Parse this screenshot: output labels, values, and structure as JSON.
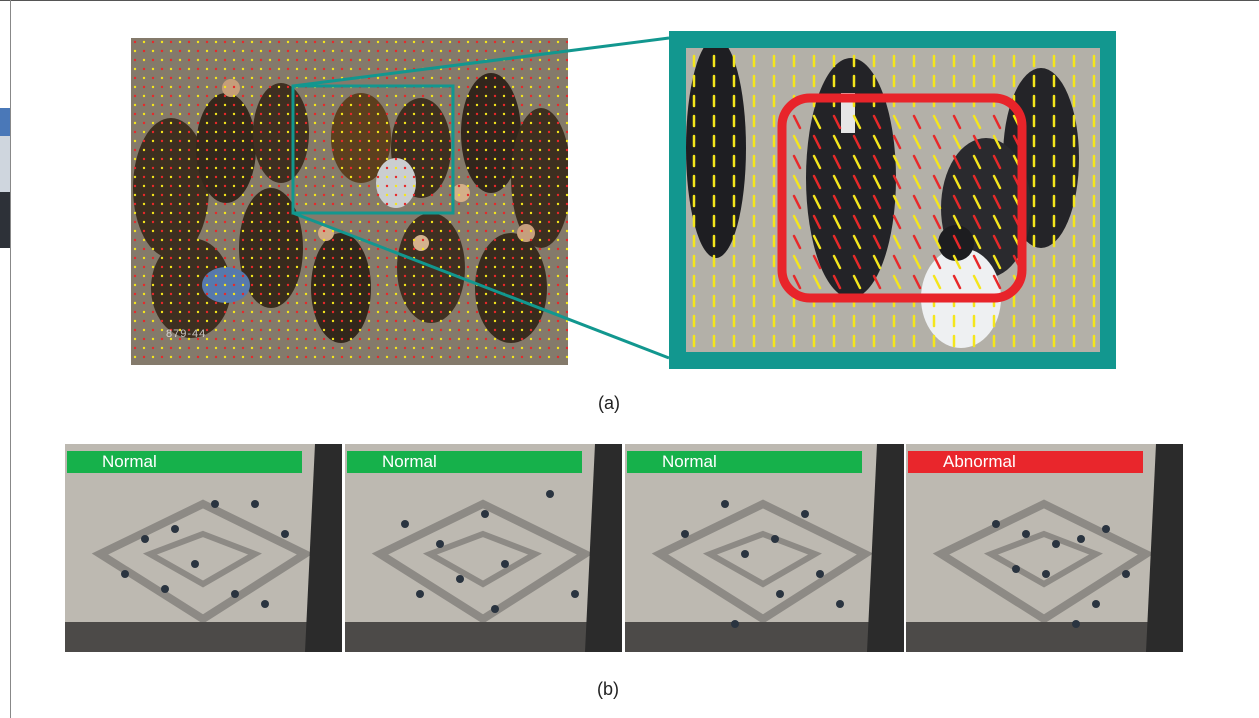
{
  "figure": {
    "camera_stamp": "879-44",
    "caption_a": "(a)",
    "caption_b": "(b)"
  },
  "colors": {
    "teal_zoom": "#12978f",
    "red_box": "#e8242a",
    "normal_green": "#16b14b",
    "abnormal_red": "#e9262c",
    "flow_yellow": "#f4e61c",
    "flow_red": "#e8282a"
  },
  "frames": [
    {
      "label": "Normal",
      "status": "normal"
    },
    {
      "label": "Normal",
      "status": "normal"
    },
    {
      "label": "Normal",
      "status": "normal"
    },
    {
      "label": "Abnormal",
      "status": "abnormal"
    }
  ]
}
